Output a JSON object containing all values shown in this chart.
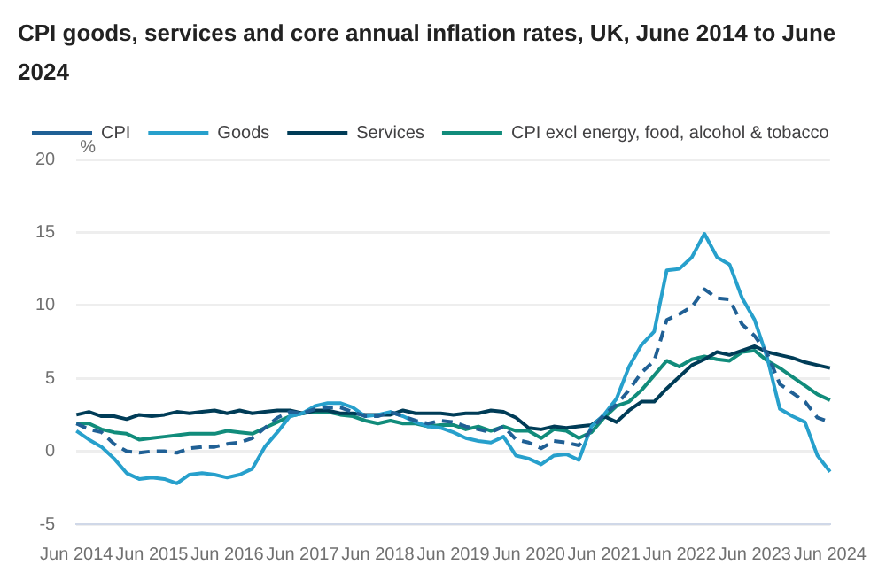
{
  "chart_data": {
    "type": "line",
    "title": "CPI goods, services and core annual inflation rates, UK, June 2014 to June 2024",
    "ylabel": "%",
    "categories": [
      "Jun 2014",
      null,
      null,
      null,
      null,
      null,
      "Jun 2015",
      null,
      null,
      null,
      null,
      null,
      "Jun 2016",
      null,
      null,
      null,
      null,
      null,
      "Jun 2017",
      null,
      null,
      null,
      null,
      null,
      "Jun 2018",
      null,
      null,
      null,
      null,
      null,
      "Jun 2019",
      null,
      null,
      null,
      null,
      null,
      "Jun 2020",
      null,
      null,
      null,
      null,
      null,
      "Jun 2021",
      null,
      null,
      null,
      null,
      null,
      "Jun 2022",
      null,
      null,
      null,
      null,
      null,
      "Jun 2023",
      null,
      null,
      null,
      null,
      null,
      "Jun 2024"
    ],
    "series": [
      {
        "name": "CPI",
        "color": "#206095",
        "line_style": "dashed",
        "values": [
          1.9,
          1.5,
          1.3,
          0.5,
          0.0,
          -0.1,
          0.0,
          0.0,
          -0.1,
          0.2,
          0.3,
          0.3,
          0.5,
          0.6,
          0.9,
          1.6,
          2.3,
          2.7,
          2.6,
          2.9,
          3.0,
          3.0,
          2.7,
          2.4,
          2.4,
          2.7,
          2.4,
          2.1,
          1.9,
          2.1,
          2.0,
          1.7,
          1.5,
          1.3,
          1.7,
          0.8,
          0.6,
          0.2,
          0.7,
          0.6,
          0.4,
          1.5,
          2.5,
          3.2,
          4.2,
          5.4,
          6.2,
          9.0,
          9.4,
          9.9,
          11.1,
          10.5,
          10.4,
          8.7,
          7.9,
          6.7,
          4.6,
          4.0,
          3.4,
          2.3,
          2.0
        ]
      },
      {
        "name": "Goods",
        "color": "#27a0cc",
        "line_style": "solid",
        "values": [
          1.4,
          0.8,
          0.3,
          -0.5,
          -1.5,
          -1.9,
          -1.8,
          -1.9,
          -2.2,
          -1.6,
          -1.5,
          -1.6,
          -1.8,
          -1.6,
          -1.2,
          0.3,
          1.3,
          2.4,
          2.6,
          3.1,
          3.3,
          3.3,
          3.0,
          2.4,
          2.5,
          2.7,
          2.4,
          2.0,
          1.7,
          1.6,
          1.3,
          0.9,
          0.7,
          0.6,
          1.0,
          -0.3,
          -0.5,
          -0.9,
          -0.3,
          -0.2,
          -0.6,
          1.7,
          2.5,
          3.6,
          5.8,
          7.3,
          8.2,
          12.4,
          12.5,
          13.3,
          14.9,
          13.3,
          12.8,
          10.5,
          9.0,
          6.4,
          2.9,
          2.4,
          2.0,
          -0.3,
          -1.4
        ]
      },
      {
        "name": "Services",
        "color": "#003c57",
        "line_style": "solid",
        "values": [
          2.5,
          2.7,
          2.4,
          2.4,
          2.2,
          2.5,
          2.4,
          2.5,
          2.7,
          2.6,
          2.7,
          2.8,
          2.6,
          2.8,
          2.6,
          2.7,
          2.8,
          2.8,
          2.6,
          2.8,
          2.8,
          2.6,
          2.6,
          2.5,
          2.5,
          2.5,
          2.8,
          2.6,
          2.6,
          2.6,
          2.5,
          2.6,
          2.6,
          2.8,
          2.7,
          2.3,
          1.6,
          1.5,
          1.7,
          1.6,
          1.7,
          1.8,
          2.4,
          2.0,
          2.8,
          3.4,
          3.4,
          4.3,
          5.1,
          5.9,
          6.3,
          6.8,
          6.6,
          6.9,
          7.2,
          6.8,
          6.6,
          6.4,
          6.1,
          5.9,
          5.7
        ]
      },
      {
        "name": "CPI excl energy, food, alcohol & tobacco",
        "color": "#118c7b",
        "line_style": "solid",
        "values": [
          1.9,
          1.9,
          1.5,
          1.3,
          1.2,
          0.8,
          0.9,
          1.0,
          1.1,
          1.2,
          1.2,
          1.2,
          1.4,
          1.3,
          1.2,
          1.6,
          2.0,
          2.4,
          2.6,
          2.7,
          2.7,
          2.5,
          2.4,
          2.1,
          1.9,
          2.1,
          1.9,
          1.9,
          1.7,
          1.8,
          1.8,
          1.5,
          1.7,
          1.4,
          1.7,
          1.4,
          1.4,
          0.9,
          1.5,
          1.4,
          0.9,
          1.3,
          2.3,
          3.1,
          3.4,
          4.2,
          5.2,
          6.2,
          5.8,
          6.3,
          6.5,
          6.3,
          6.2,
          6.8,
          6.9,
          6.2,
          5.7,
          5.1,
          4.5,
          3.9,
          3.5
        ]
      }
    ],
    "ylim": [
      -5,
      20
    ],
    "yticks": [
      -5,
      0,
      5,
      10,
      15,
      20
    ],
    "grid": "y",
    "legend": "top left",
    "marker": "none"
  }
}
